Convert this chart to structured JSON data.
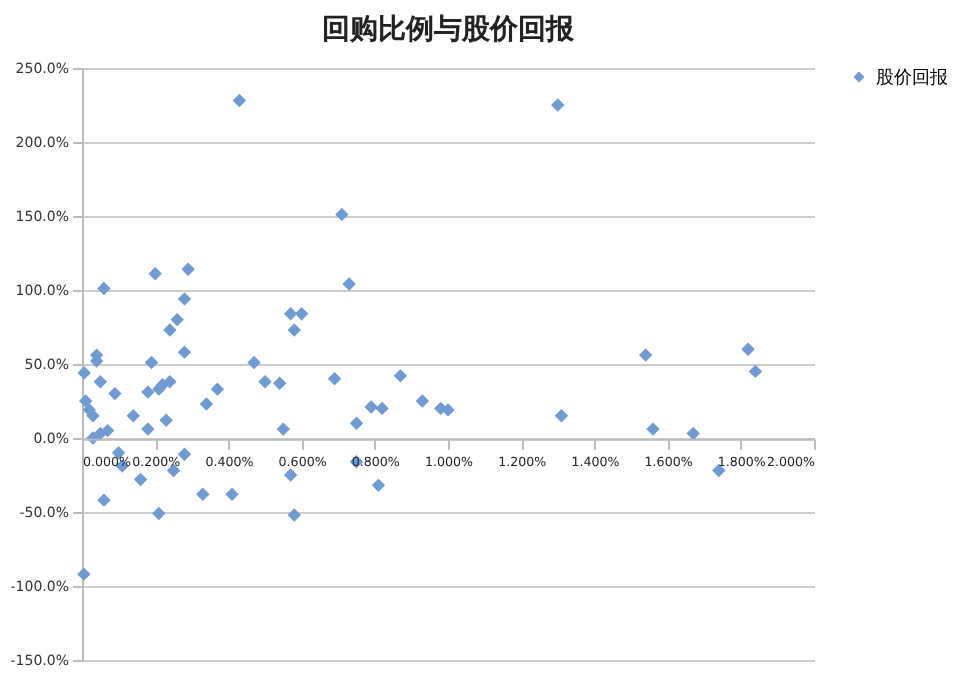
{
  "chart_data": {
    "type": "scatter",
    "title": "回购比例与股价回报",
    "x": [
      0.006,
      0.01,
      0.02,
      0.03,
      0.05,
      0.06,
      0.005,
      0.03,
      0.05,
      0.07,
      0.09,
      0.1,
      0.11,
      0.14,
      0.16,
      0.18,
      0.19,
      0.18,
      0.21,
      0.23,
      0.25,
      0.28,
      0.28,
      0.33,
      0.34,
      0.37,
      0.41,
      0.47,
      0.5,
      0.54,
      0.55,
      0.57,
      0.58,
      0.57,
      0.6,
      0.58,
      0.69,
      0.75,
      0.75,
      0.79,
      0.82,
      0.81,
      0.87,
      0.93,
      0.98,
      1.0,
      0.43,
      0.71,
      0.73,
      0.06,
      0.2,
      0.29,
      0.28,
      0.26,
      0.24,
      0.04,
      0.04,
      0.21,
      0.22,
      0.24,
      1.3,
      1.31,
      1.54,
      1.56,
      1.67,
      1.74,
      1.82,
      1.84
    ],
    "series": [
      {
        "name": "股价回报",
        "color": "#6f9bd1",
        "values": [
          44,
          25,
          19,
          15,
          38,
          -42,
          -92,
          0,
          3,
          5,
          30,
          -10,
          -19,
          15,
          -28,
          6,
          51,
          31,
          -51,
          12,
          -22,
          -11,
          58,
          -38,
          23,
          33,
          -38,
          51,
          38,
          37,
          6,
          -25,
          -52,
          84,
          84,
          73,
          40,
          10,
          -16,
          21,
          20,
          -32,
          42,
          25,
          20,
          19,
          228,
          151,
          104,
          101,
          111,
          114,
          94,
          80,
          73,
          56,
          52,
          33,
          36,
          38,
          225,
          15,
          56,
          6,
          3,
          -22,
          60,
          45
        ]
      }
    ],
    "xlim": [
      0,
      2.0
    ],
    "ylim": [
      -150,
      250
    ],
    "xticks": [
      {
        "value": 0,
        "label": "0.000%"
      },
      {
        "value": 0.2,
        "label": "0.200%"
      },
      {
        "value": 0.4,
        "label": "0.400%"
      },
      {
        "value": 0.6,
        "label": "0.600%"
      },
      {
        "value": 0.8,
        "label": "0.800%"
      },
      {
        "value": 1.0,
        "label": "1.000%"
      },
      {
        "value": 1.2,
        "label": "1.200%"
      },
      {
        "value": 1.4,
        "label": "1.400%"
      },
      {
        "value": 1.6,
        "label": "1.600%"
      },
      {
        "value": 1.8,
        "label": "1.800%"
      },
      {
        "value": 2.0,
        "label": "2.000%"
      }
    ],
    "yticks": [
      {
        "value": -150,
        "label": "-150.0%"
      },
      {
        "value": -100,
        "label": "-100.0%"
      },
      {
        "value": -50,
        "label": "-50.0%"
      },
      {
        "value": 0,
        "label": "0.0%"
      },
      {
        "value": 50,
        "label": "50.0%"
      },
      {
        "value": 100,
        "label": "100.0%"
      },
      {
        "value": 150,
        "label": "150.0%"
      },
      {
        "value": 200,
        "label": "200.0%"
      },
      {
        "value": 250,
        "label": "250.0%"
      }
    ],
    "grid": "y",
    "legend": "right",
    "marker": "diamond"
  }
}
